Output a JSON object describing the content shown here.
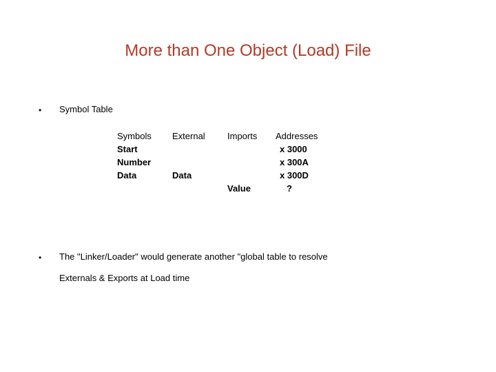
{
  "title_color": "#b33a26",
  "text_color": "#000000",
  "title": "More than One Object (Load) File",
  "bullet_glyph": "•",
  "bullets": {
    "b1": "Symbol Table",
    "b2_line1": "The \"Linker/Loader\" would generate another \"global table to resolve",
    "b2_line2": "Externals & Exports at Load time"
  },
  "table": {
    "headers": {
      "symbols": "Symbols",
      "external": "External",
      "imports": "Imports",
      "addresses": "Addresses"
    },
    "rows": [
      {
        "sym": "Start",
        "ext": "",
        "imp": "",
        "addr": "x 3000"
      },
      {
        "sym": "Number",
        "ext": "",
        "imp": "",
        "addr": "x 300A"
      },
      {
        "sym": "Data",
        "ext": "Data",
        "imp": "",
        "addr": "x 300D"
      },
      {
        "sym": "",
        "ext": "",
        "imp": "Value",
        "addr": "?"
      }
    ]
  }
}
